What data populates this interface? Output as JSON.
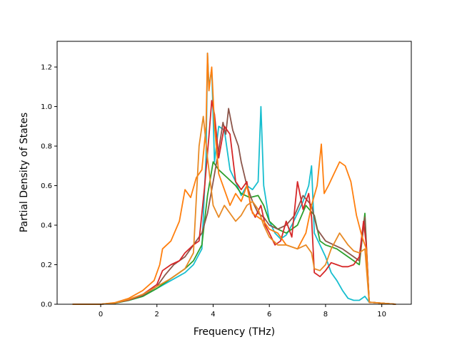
{
  "chart_data": {
    "type": "line",
    "title": "",
    "xlabel": "Frequency (THz)",
    "ylabel": "Partial Density of States",
    "xlim": [
      -1.55,
      11.05
    ],
    "ylim": [
      0.0,
      1.33
    ],
    "xticks": [
      0,
      2,
      4,
      6,
      8,
      10
    ],
    "xtick_labels": [
      "0",
      "2",
      "4",
      "6",
      "8",
      "10"
    ],
    "yticks": [
      0.0,
      0.2,
      0.4,
      0.6,
      0.8,
      1.0,
      1.2
    ],
    "ytick_labels": [
      "0.0",
      "0.2",
      "0.4",
      "0.6",
      "0.8",
      "1.0",
      "1.2"
    ],
    "grid": false,
    "legend": "none",
    "series": [
      {
        "color": "#17becf",
        "points": [
          [
            -1.0,
            0
          ],
          [
            0.0,
            0
          ],
          [
            0.5,
            0.005
          ],
          [
            1.0,
            0.02
          ],
          [
            1.5,
            0.04
          ],
          [
            2.0,
            0.08
          ],
          [
            2.5,
            0.12
          ],
          [
            3.0,
            0.16
          ],
          [
            3.3,
            0.2
          ],
          [
            3.6,
            0.28
          ],
          [
            3.75,
            0.75
          ],
          [
            3.8,
            1.27
          ],
          [
            3.85,
            1.1
          ],
          [
            3.95,
            1.19
          ],
          [
            4.05,
            0.72
          ],
          [
            4.2,
            0.9
          ],
          [
            4.4,
            0.88
          ],
          [
            4.6,
            0.68
          ],
          [
            4.8,
            0.62
          ],
          [
            5.0,
            0.55
          ],
          [
            5.2,
            0.6
          ],
          [
            5.4,
            0.58
          ],
          [
            5.6,
            0.62
          ],
          [
            5.7,
            1.0
          ],
          [
            5.8,
            0.6
          ],
          [
            6.0,
            0.42
          ],
          [
            6.2,
            0.36
          ],
          [
            6.4,
            0.33
          ],
          [
            6.6,
            0.35
          ],
          [
            6.8,
            0.4
          ],
          [
            7.0,
            0.46
          ],
          [
            7.2,
            0.52
          ],
          [
            7.4,
            0.6
          ],
          [
            7.5,
            0.7
          ],
          [
            7.6,
            0.36
          ],
          [
            7.8,
            0.3
          ],
          [
            8.0,
            0.24
          ],
          [
            8.2,
            0.16
          ],
          [
            8.4,
            0.12
          ],
          [
            8.6,
            0.07
          ],
          [
            8.8,
            0.03
          ],
          [
            9.0,
            0.02
          ],
          [
            9.2,
            0.02
          ],
          [
            9.4,
            0.04
          ],
          [
            9.55,
            0.01
          ],
          [
            10.5,
            0
          ]
        ]
      },
      {
        "color": "#2ca02c",
        "points": [
          [
            -1.0,
            0
          ],
          [
            0.0,
            0
          ],
          [
            0.5,
            0.005
          ],
          [
            1.0,
            0.02
          ],
          [
            1.5,
            0.04
          ],
          [
            2.0,
            0.08
          ],
          [
            2.5,
            0.13
          ],
          [
            3.0,
            0.18
          ],
          [
            3.3,
            0.22
          ],
          [
            3.6,
            0.3
          ],
          [
            3.8,
            0.55
          ],
          [
            4.0,
            0.72
          ],
          [
            4.2,
            0.68
          ],
          [
            4.5,
            0.64
          ],
          [
            4.8,
            0.6
          ],
          [
            5.0,
            0.56
          ],
          [
            5.3,
            0.54
          ],
          [
            5.6,
            0.55
          ],
          [
            5.8,
            0.5
          ],
          [
            6.0,
            0.42
          ],
          [
            6.3,
            0.38
          ],
          [
            6.6,
            0.36
          ],
          [
            7.0,
            0.4
          ],
          [
            7.3,
            0.5
          ],
          [
            7.6,
            0.45
          ],
          [
            7.8,
            0.32
          ],
          [
            8.0,
            0.3
          ],
          [
            8.4,
            0.28
          ],
          [
            8.8,
            0.24
          ],
          [
            9.2,
            0.2
          ],
          [
            9.4,
            0.46
          ],
          [
            9.55,
            0.01
          ],
          [
            10.5,
            0
          ]
        ]
      },
      {
        "color": "#8c564b",
        "points": [
          [
            -1.0,
            0
          ],
          [
            0.0,
            0
          ],
          [
            0.5,
            0.006
          ],
          [
            1.0,
            0.022
          ],
          [
            1.5,
            0.045
          ],
          [
            2.0,
            0.09
          ],
          [
            2.3,
            0.15
          ],
          [
            2.6,
            0.2
          ],
          [
            3.0,
            0.24
          ],
          [
            3.3,
            0.3
          ],
          [
            3.6,
            0.36
          ],
          [
            3.8,
            0.46
          ],
          [
            4.0,
            0.62
          ],
          [
            4.2,
            0.78
          ],
          [
            4.35,
            0.92
          ],
          [
            4.45,
            0.86
          ],
          [
            4.55,
            0.99
          ],
          [
            4.7,
            0.88
          ],
          [
            4.9,
            0.8
          ],
          [
            5.0,
            0.72
          ],
          [
            5.2,
            0.6
          ],
          [
            5.4,
            0.52
          ],
          [
            5.6,
            0.46
          ],
          [
            5.8,
            0.44
          ],
          [
            6.0,
            0.4
          ],
          [
            6.3,
            0.38
          ],
          [
            6.6,
            0.4
          ],
          [
            6.9,
            0.45
          ],
          [
            7.2,
            0.55
          ],
          [
            7.5,
            0.5
          ],
          [
            7.7,
            0.38
          ],
          [
            8.0,
            0.32
          ],
          [
            8.3,
            0.3
          ],
          [
            8.6,
            0.28
          ],
          [
            8.9,
            0.25
          ],
          [
            9.2,
            0.22
          ],
          [
            9.4,
            0.44
          ],
          [
            9.55,
            0.01
          ],
          [
            10.5,
            0
          ]
        ]
      },
      {
        "color": "#d62728",
        "points": [
          [
            -1.0,
            0
          ],
          [
            0.0,
            0
          ],
          [
            0.5,
            0.006
          ],
          [
            1.0,
            0.022
          ],
          [
            1.5,
            0.05
          ],
          [
            2.0,
            0.1
          ],
          [
            2.2,
            0.17
          ],
          [
            2.5,
            0.2
          ],
          [
            2.8,
            0.22
          ],
          [
            3.0,
            0.26
          ],
          [
            3.3,
            0.3
          ],
          [
            3.5,
            0.32
          ],
          [
            3.7,
            0.6
          ],
          [
            3.85,
            0.85
          ],
          [
            3.95,
            1.03
          ],
          [
            4.05,
            0.96
          ],
          [
            4.2,
            0.74
          ],
          [
            4.4,
            0.9
          ],
          [
            4.6,
            0.86
          ],
          [
            4.8,
            0.62
          ],
          [
            5.0,
            0.58
          ],
          [
            5.2,
            0.62
          ],
          [
            5.35,
            0.48
          ],
          [
            5.5,
            0.44
          ],
          [
            5.7,
            0.5
          ],
          [
            5.85,
            0.4
          ],
          [
            6.0,
            0.36
          ],
          [
            6.2,
            0.3
          ],
          [
            6.4,
            0.32
          ],
          [
            6.6,
            0.42
          ],
          [
            6.8,
            0.34
          ],
          [
            7.0,
            0.62
          ],
          [
            7.2,
            0.48
          ],
          [
            7.4,
            0.56
          ],
          [
            7.5,
            0.44
          ],
          [
            7.6,
            0.16
          ],
          [
            7.8,
            0.14
          ],
          [
            8.0,
            0.17
          ],
          [
            8.2,
            0.21
          ],
          [
            8.4,
            0.2
          ],
          [
            8.6,
            0.19
          ],
          [
            8.8,
            0.19
          ],
          [
            9.0,
            0.2
          ],
          [
            9.2,
            0.24
          ],
          [
            9.35,
            0.42
          ],
          [
            9.45,
            0.3
          ],
          [
            9.55,
            0.01
          ],
          [
            10.5,
            0
          ]
        ]
      },
      {
        "color": "#ff7f0e",
        "points": [
          [
            -1.0,
            0
          ],
          [
            0.0,
            0
          ],
          [
            0.5,
            0.008
          ],
          [
            1.0,
            0.03
          ],
          [
            1.5,
            0.07
          ],
          [
            1.9,
            0.12
          ],
          [
            2.1,
            0.2
          ],
          [
            2.2,
            0.28
          ],
          [
            2.5,
            0.32
          ],
          [
            2.8,
            0.42
          ],
          [
            3.0,
            0.58
          ],
          [
            3.2,
            0.54
          ],
          [
            3.4,
            0.64
          ],
          [
            3.6,
            0.68
          ],
          [
            3.75,
            0.9
          ],
          [
            3.8,
            1.27
          ],
          [
            3.85,
            1.08
          ],
          [
            3.95,
            1.2
          ],
          [
            4.05,
            0.9
          ],
          [
            4.2,
            0.66
          ],
          [
            4.4,
            0.58
          ],
          [
            4.6,
            0.5
          ],
          [
            4.8,
            0.56
          ],
          [
            5.0,
            0.52
          ],
          [
            5.2,
            0.6
          ],
          [
            5.4,
            0.46
          ],
          [
            5.6,
            0.44
          ],
          [
            5.8,
            0.42
          ],
          [
            6.0,
            0.38
          ],
          [
            6.3,
            0.36
          ],
          [
            6.6,
            0.3
          ],
          [
            7.0,
            0.28
          ],
          [
            7.3,
            0.36
          ],
          [
            7.5,
            0.5
          ],
          [
            7.7,
            0.6
          ],
          [
            7.85,
            0.81
          ],
          [
            7.95,
            0.56
          ],
          [
            8.1,
            0.6
          ],
          [
            8.3,
            0.66
          ],
          [
            8.5,
            0.72
          ],
          [
            8.7,
            0.7
          ],
          [
            8.9,
            0.62
          ],
          [
            9.1,
            0.45
          ],
          [
            9.3,
            0.34
          ],
          [
            9.45,
            0.28
          ],
          [
            9.55,
            0.01
          ],
          [
            10.5,
            0
          ]
        ]
      },
      {
        "color": "#e88a25",
        "points": [
          [
            -1.0,
            0
          ],
          [
            0.0,
            0
          ],
          [
            0.5,
            0.006
          ],
          [
            1.0,
            0.025
          ],
          [
            1.5,
            0.05
          ],
          [
            2.0,
            0.09
          ],
          [
            2.5,
            0.13
          ],
          [
            3.0,
            0.18
          ],
          [
            3.3,
            0.26
          ],
          [
            3.5,
            0.8
          ],
          [
            3.65,
            0.95
          ],
          [
            3.8,
            0.74
          ],
          [
            4.0,
            0.5
          ],
          [
            4.2,
            0.44
          ],
          [
            4.4,
            0.5
          ],
          [
            4.6,
            0.46
          ],
          [
            4.8,
            0.42
          ],
          [
            5.0,
            0.45
          ],
          [
            5.2,
            0.5
          ],
          [
            5.4,
            0.52
          ],
          [
            5.6,
            0.48
          ],
          [
            5.8,
            0.4
          ],
          [
            6.0,
            0.34
          ],
          [
            6.3,
            0.3
          ],
          [
            6.6,
            0.3
          ],
          [
            7.0,
            0.28
          ],
          [
            7.3,
            0.3
          ],
          [
            7.5,
            0.26
          ],
          [
            7.6,
            0.18
          ],
          [
            7.8,
            0.17
          ],
          [
            8.0,
            0.2
          ],
          [
            8.2,
            0.28
          ],
          [
            8.5,
            0.36
          ],
          [
            8.8,
            0.3
          ],
          [
            9.0,
            0.27
          ],
          [
            9.2,
            0.26
          ],
          [
            9.4,
            0.28
          ],
          [
            9.55,
            0.01
          ],
          [
            10.5,
            0
          ]
        ]
      }
    ]
  }
}
